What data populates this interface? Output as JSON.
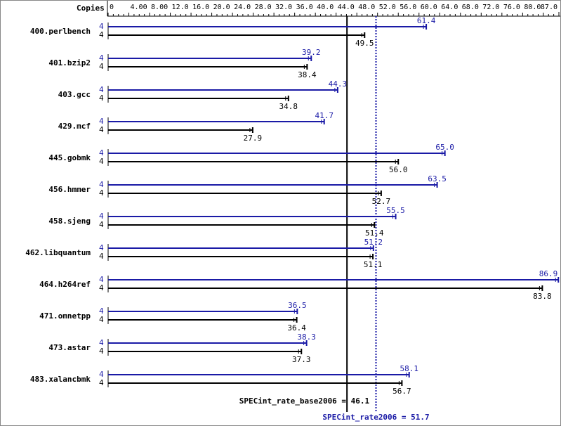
{
  "chart_data": {
    "type": "bar",
    "orientation": "horizontal",
    "copies_header": "Copies",
    "categories": [
      "400.perlbench",
      "401.bzip2",
      "403.gcc",
      "429.mcf",
      "445.gobmk",
      "456.hmmer",
      "458.sjeng",
      "462.libquantum",
      "464.h264ref",
      "471.omnetpp",
      "473.astar",
      "483.xalancbmk"
    ],
    "copies": {
      "peak": [
        4,
        4,
        4,
        4,
        4,
        4,
        4,
        4,
        4,
        4,
        4,
        4
      ],
      "base": [
        4,
        4,
        4,
        4,
        4,
        4,
        4,
        4,
        4,
        4,
        4,
        4
      ]
    },
    "series": [
      {
        "key": "peak",
        "color": "#1a1aa6",
        "values": [
          61.4,
          39.2,
          44.3,
          41.7,
          65.0,
          63.5,
          55.5,
          51.2,
          86.9,
          36.5,
          38.3,
          58.1
        ]
      },
      {
        "key": "base",
        "color": "#000000",
        "values": [
          49.5,
          38.4,
          34.8,
          27.9,
          56.0,
          52.7,
          51.4,
          51.1,
          83.8,
          36.4,
          37.3,
          56.7
        ]
      }
    ],
    "value_labels": {
      "peak": [
        "61.4",
        "39.2",
        "44.3",
        "41.7",
        "65.0",
        "63.5",
        "55.5",
        "51.2",
        "86.9",
        "36.5",
        "38.3",
        "58.1"
      ],
      "base": [
        "49.5",
        "38.4",
        "34.8",
        "27.9",
        "56.0",
        "52.7",
        "51.4",
        "51.1",
        "83.8",
        "36.4",
        "37.3",
        "56.7"
      ]
    },
    "xlim": [
      0,
      87.0
    ],
    "xticks": [
      "0",
      "4.00",
      "8.00",
      "12.0",
      "16.0",
      "20.0",
      "24.0",
      "28.0",
      "32.0",
      "36.0",
      "40.0",
      "44.0",
      "48.0",
      "52.0",
      "56.0",
      "60.0",
      "64.0",
      "68.0",
      "72.0",
      "76.0",
      "80.0",
      "87.0"
    ],
    "xtick_values": [
      0,
      4,
      8,
      12,
      16,
      20,
      24,
      28,
      32,
      36,
      40,
      44,
      48,
      52,
      56,
      60,
      64,
      68,
      72,
      76,
      80,
      87
    ],
    "reference_lines": [
      {
        "label": "SPECint_rate_base2006 = 46.1",
        "value": 46.1,
        "color": "#000000",
        "style": "solid"
      },
      {
        "label": "SPECint_rate2006 = 51.7",
        "value": 51.7,
        "color": "#1a1aa6",
        "style": "dotted"
      }
    ],
    "grid": false
  }
}
